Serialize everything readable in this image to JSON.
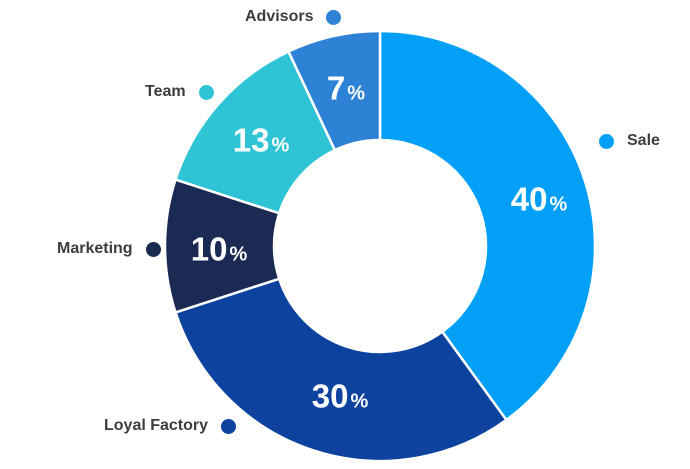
{
  "chart_data": {
    "type": "pie",
    "variant": "donut",
    "title": "",
    "categories": [
      "Sale",
      "Loyal Factory",
      "Marketing",
      "Team",
      "Advisors"
    ],
    "values": [
      40,
      30,
      10,
      13,
      7
    ],
    "unit": "%",
    "colors": [
      "#019ff5",
      "#0d429f",
      "#1a2a52",
      "#2ec4d6",
      "#2e82d6"
    ],
    "start_angle_deg": 0,
    "direction": "clockwise",
    "inner_radius_ratio": 0.49,
    "segment_gap_color": "#ffffff",
    "legend_position": "callouts-around",
    "label_text_color": "#3d3d3d",
    "value_label_color": "#ffffff",
    "background_color": "#ffffff"
  }
}
